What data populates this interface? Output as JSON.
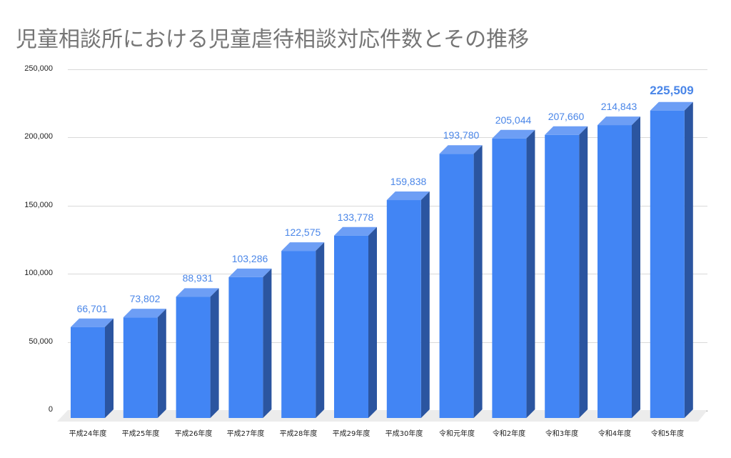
{
  "chart_data": {
    "type": "bar",
    "title": "児童相談所における児童虐待相談対応件数とその推移",
    "xlabel": "",
    "ylabel": "",
    "categories": [
      "平成24年度",
      "平成25年度",
      "平成26年度",
      "平成27年度",
      "平成28年度",
      "平成29年度",
      "平成30年度",
      "令和元年度",
      "令和2年度",
      "令和3年度",
      "令和4年度",
      "令和5年度"
    ],
    "values": [
      66701,
      73802,
      88931,
      103286,
      122575,
      133778,
      159838,
      193780,
      205044,
      207660,
      214843,
      225509
    ],
    "data_labels": [
      "66,701",
      "73,802",
      "88,931",
      "103,286",
      "122,575",
      "133,778",
      "159,838",
      "193,780",
      "205,044",
      "207,660",
      "214,843",
      "225,509"
    ],
    "highlighted_index": 11,
    "ylim": [
      0,
      250000
    ],
    "yticks": [
      "0",
      "50,000",
      "100,000",
      "150,000",
      "200,000",
      "250,000"
    ],
    "grid": true,
    "legend": "none",
    "style": "3d-bar",
    "colors": {
      "bar_front": "#4285f4",
      "bar_side": "#2b55a0",
      "bar_top": "#6d9ef5",
      "label": "#4a86e8"
    }
  }
}
